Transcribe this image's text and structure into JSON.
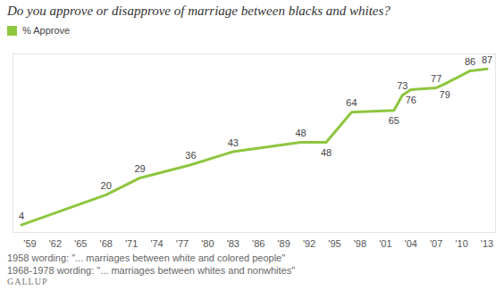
{
  "chart_data": {
    "type": "line",
    "title": "Do you approve or disapprove of marriage between blacks and whites?",
    "x": [
      1958,
      1968,
      1972,
      1978,
      1983,
      1991,
      1994,
      1997,
      2002,
      2003,
      2004,
      2007,
      2008,
      2011,
      2013
    ],
    "series": [
      {
        "name": "% Approve",
        "color": "#8dc63f",
        "values": [
          4,
          20,
          29,
          36,
          43,
          48,
          48,
          64,
          65,
          73,
          76,
          77,
          79,
          86,
          87
        ]
      }
    ],
    "xlim": [
      1957,
      2014
    ],
    "xticks": [
      {
        "value": 1959,
        "label": "'59"
      },
      {
        "value": 1962,
        "label": "'62"
      },
      {
        "value": 1965,
        "label": "'65"
      },
      {
        "value": 1968,
        "label": "'68"
      },
      {
        "value": 1971,
        "label": "'71"
      },
      {
        "value": 1974,
        "label": "'74"
      },
      {
        "value": 1977,
        "label": "'77"
      },
      {
        "value": 1980,
        "label": "'80"
      },
      {
        "value": 1983,
        "label": "'83"
      },
      {
        "value": 1986,
        "label": "'86"
      },
      {
        "value": 1989,
        "label": "'89"
      },
      {
        "value": 1992,
        "label": "'92"
      },
      {
        "value": 1995,
        "label": "'95"
      },
      {
        "value": 1998,
        "label": "'98"
      },
      {
        "value": 2001,
        "label": "'01"
      },
      {
        "value": 2004,
        "label": "'04"
      },
      {
        "value": 2007,
        "label": "'07"
      },
      {
        "value": 2010,
        "label": "'10"
      },
      {
        "value": 2013,
        "label": "'13"
      }
    ],
    "ylim": [
      0,
      95
    ],
    "tick_labels": "x",
    "data_labels": true,
    "legend": "top-left",
    "notes": [
      "1958 wording: \"... marriages between white and colored people\"",
      "1968-1978 wording: \"... marriages between whites and nonwhites\""
    ],
    "source": "GALLUP"
  }
}
